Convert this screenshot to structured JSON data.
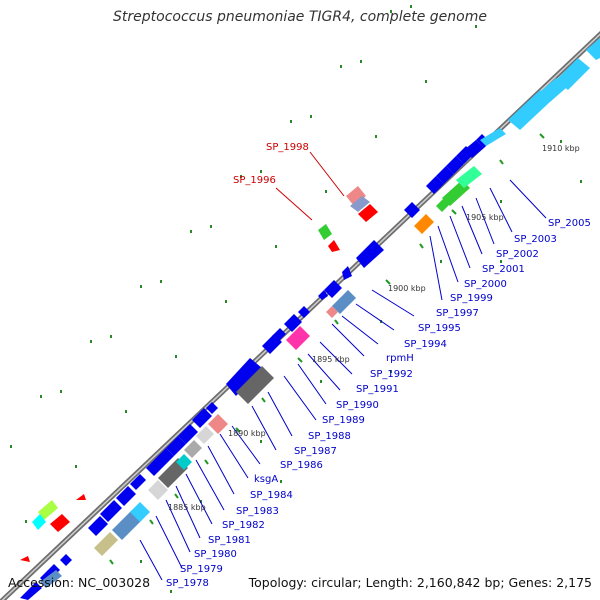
{
  "title": "Streptococcus pneumoniae TIGR4, complete genome",
  "accession": "Accession: NC_003028",
  "topology": "Topology: circular; Length: 2,160,842 bp; Genes: 2,175",
  "colors": {
    "backbone": "#9a9a9a",
    "gene_blue": "#0000ee",
    "gene_light_blue": "#33ccff",
    "gene_steel": "#5b8ec4",
    "label_blue": "#0000cc",
    "label_red": "#cc0000",
    "tick_green": "#228822",
    "tick_label": "#333333"
  },
  "kbp_ticks": [
    "1885 kbp",
    "1890 kbp",
    "1895 kbp",
    "1900 kbp",
    "1905 kbp",
    "1910 kbp"
  ],
  "gene_labels": [
    "SP_1978",
    "SP_1979",
    "SP_1980",
    "SP_1981",
    "SP_1982",
    "SP_1983",
    "SP_1984",
    "ksgA",
    "SP_1986",
    "SP_1987",
    "SP_1988",
    "SP_1989",
    "SP_1990",
    "SP_1991",
    "SP_1992",
    "rpmH",
    "SP_1994",
    "SP_1995",
    "SP_1997",
    "SP_1999",
    "SP_2000",
    "SP_2001",
    "SP_2002",
    "SP_2003",
    "SP_2005"
  ],
  "highlight_labels": [
    "SP_1998",
    "SP_1996"
  ]
}
